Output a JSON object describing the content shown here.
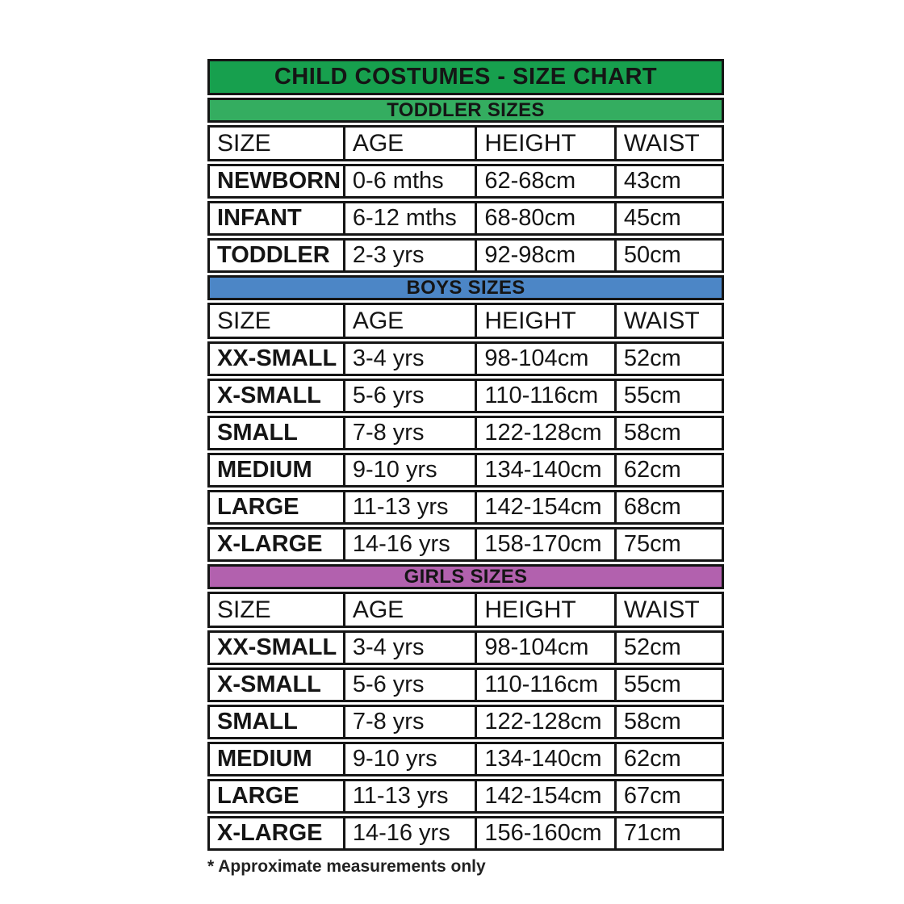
{
  "chart_data": {
    "type": "table",
    "title": "CHILD COSTUMES - SIZE CHART",
    "footnote": "* Approximate measurements only",
    "columns": [
      "SIZE",
      "AGE",
      "HEIGHT",
      "WAIST"
    ],
    "sections": [
      {
        "label": "TODDLER SIZES",
        "rows": [
          {
            "size": "NEWBORN",
            "age": "0-6 mths",
            "height": "62-68cm",
            "waist": "43cm"
          },
          {
            "size": "INFANT",
            "age": "6-12 mths",
            "height": "68-80cm",
            "waist": "45cm"
          },
          {
            "size": "TODDLER",
            "age": "2-3 yrs",
            "height": "92-98cm",
            "waist": "50cm"
          }
        ]
      },
      {
        "label": "BOYS SIZES",
        "rows": [
          {
            "size": "XX-SMALL",
            "age": "3-4 yrs",
            "height": "98-104cm",
            "waist": "52cm"
          },
          {
            "size": "X-SMALL",
            "age": "5-6 yrs",
            "height": "110-116cm",
            "waist": "55cm"
          },
          {
            "size": "SMALL",
            "age": "7-8 yrs",
            "height": "122-128cm",
            "waist": "58cm"
          },
          {
            "size": "MEDIUM",
            "age": "9-10 yrs",
            "height": "134-140cm",
            "waist": "62cm"
          },
          {
            "size": "LARGE",
            "age": "11-13 yrs",
            "height": "142-154cm",
            "waist": "68cm"
          },
          {
            "size": "X-LARGE",
            "age": "14-16 yrs",
            "height": "158-170cm",
            "waist": "75cm"
          }
        ]
      },
      {
        "label": "GIRLS SIZES",
        "rows": [
          {
            "size": "XX-SMALL",
            "age": "3-4 yrs",
            "height": "98-104cm",
            "waist": "52cm"
          },
          {
            "size": "X-SMALL",
            "age": "5-6 yrs",
            "height": "110-116cm",
            "waist": "55cm"
          },
          {
            "size": "SMALL",
            "age": "7-8 yrs",
            "height": "122-128cm",
            "waist": "58cm"
          },
          {
            "size": "MEDIUM",
            "age": "9-10 yrs",
            "height": "134-140cm",
            "waist": "62cm"
          },
          {
            "size": "LARGE",
            "age": "11-13 yrs",
            "height": "142-154cm",
            "waist": "67cm"
          },
          {
            "size": "X-LARGE",
            "age": "14-16 yrs",
            "height": "156-160cm",
            "waist": "71cm"
          }
        ]
      }
    ]
  },
  "colors": {
    "title_bg": "#17a04e",
    "toddler_bg": "#34ad60",
    "boys_bg": "#4c86c6",
    "girls_bg": "#b261ae",
    "border": "#151515",
    "text": "#151515",
    "row_bg": "#ffffff"
  }
}
